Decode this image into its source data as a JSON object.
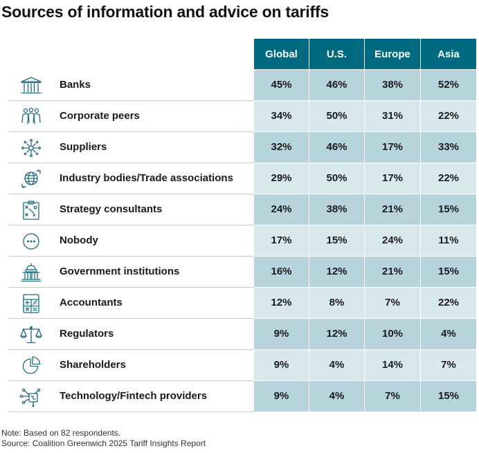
{
  "title": "Sources of information and advice on tariffs",
  "note": "Note: Based on 82 respondents.",
  "source": "Source: Coalition Greenwich 2025 Tariff Insights Report",
  "colors": {
    "header": "#006b80",
    "cell_dark": "#b7d3dc",
    "cell_light": "#d9e8ed",
    "icon": "#1c6a7e"
  },
  "chart_data": {
    "type": "table",
    "title": "Sources of information and advice on tariffs",
    "columns": [
      "Global",
      "U.S.",
      "Europe",
      "Asia"
    ],
    "rows": [
      {
        "label": "Banks",
        "icon": "bank-icon",
        "values": [
          "45%",
          "46%",
          "38%",
          "52%"
        ]
      },
      {
        "label": "Corporate peers",
        "icon": "people-icon",
        "values": [
          "34%",
          "50%",
          "31%",
          "22%"
        ]
      },
      {
        "label": "Suppliers",
        "icon": "network-icon",
        "values": [
          "32%",
          "46%",
          "17%",
          "33%"
        ]
      },
      {
        "label": "Industry bodies/Trade associations",
        "icon": "globe-icon",
        "values": [
          "29%",
          "50%",
          "17%",
          "22%"
        ]
      },
      {
        "label": "Strategy consultants",
        "icon": "strategy-board-icon",
        "values": [
          "24%",
          "38%",
          "21%",
          "15%"
        ]
      },
      {
        "label": "Nobody",
        "icon": "ellipsis-icon",
        "values": [
          "17%",
          "15%",
          "24%",
          "11%"
        ]
      },
      {
        "label": "Government institutions",
        "icon": "capitol-icon",
        "values": [
          "16%",
          "12%",
          "21%",
          "15%"
        ]
      },
      {
        "label": "Accountants",
        "icon": "calculator-icon",
        "values": [
          "12%",
          "8%",
          "7%",
          "22%"
        ]
      },
      {
        "label": "Regulators",
        "icon": "scales-icon",
        "values": [
          "9%",
          "12%",
          "10%",
          "4%"
        ]
      },
      {
        "label": "Shareholders",
        "icon": "pie-chart-icon",
        "values": [
          "9%",
          "4%",
          "14%",
          "7%"
        ]
      },
      {
        "label": "Technology/Fintech providers",
        "icon": "circuit-icon",
        "values": [
          "9%",
          "4%",
          "7%",
          "15%"
        ]
      }
    ]
  }
}
